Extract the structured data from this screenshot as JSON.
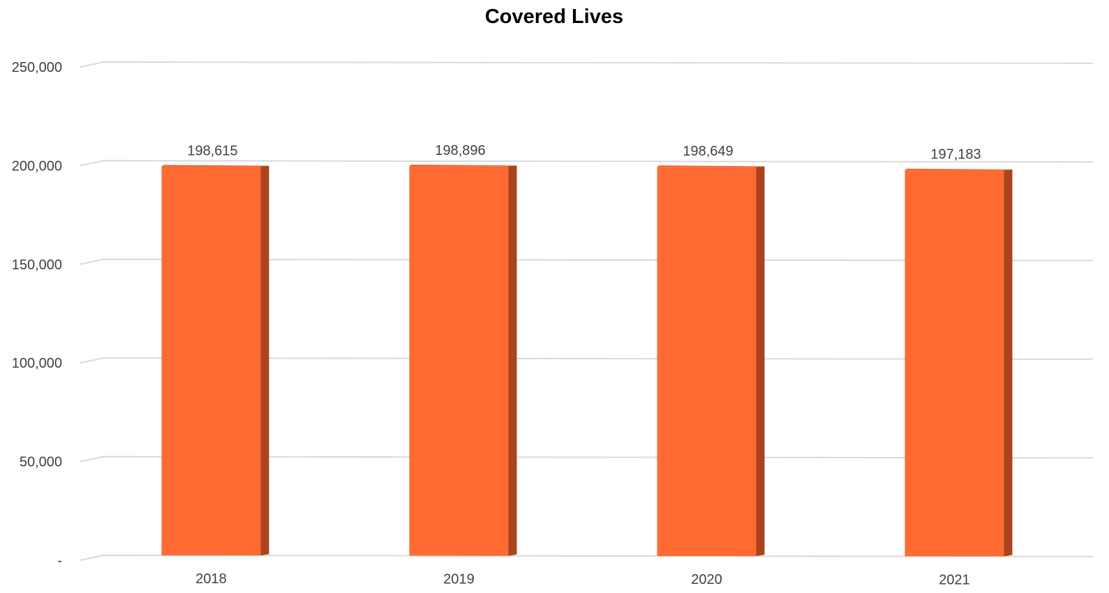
{
  "chart_data": {
    "type": "bar",
    "title": "Covered Lives",
    "categories": [
      "2018",
      "2019",
      "2020",
      "2021"
    ],
    "values": [
      198615,
      198896,
      198649,
      197183
    ],
    "data_labels": [
      "198,615",
      "198,896",
      "198,649",
      "197,183"
    ],
    "ylim": [
      0,
      250000
    ],
    "yticks": [
      0,
      50000,
      100000,
      150000,
      200000,
      250000
    ],
    "ytick_labels": [
      "-",
      "50,000",
      "100,000",
      "150,000",
      "200,000",
      "250,000"
    ],
    "xlabel": "",
    "ylabel": "",
    "grid": true,
    "legend": "none",
    "colors": {
      "bar_front": "#ff6a33",
      "bar_side": "#a8441f",
      "bar_top": "#e8602d",
      "gridline": "#d9d9d9"
    }
  }
}
